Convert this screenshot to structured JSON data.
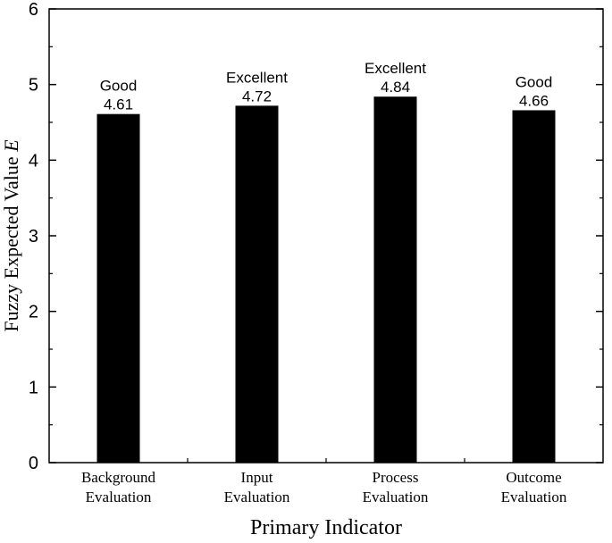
{
  "chart_data": {
    "type": "bar",
    "title": "",
    "categories": [
      [
        "Background",
        "Evaluation"
      ],
      [
        "Input",
        "Evaluation"
      ],
      [
        "Process",
        "Evaluation"
      ],
      [
        "Outcome",
        "Evaluation"
      ]
    ],
    "values": [
      4.61,
      4.72,
      4.84,
      4.66
    ],
    "value_labels": [
      "4.61",
      "4.72",
      "4.84",
      "4.66"
    ],
    "grade_labels": [
      "Good",
      "Excellent",
      "Excellent",
      "Good"
    ],
    "xlabel": "Primary Indicator",
    "ylabel": "Fuzzy Expected Value",
    "ylabel_symbol": "E",
    "ylim": [
      0,
      6
    ],
    "yticks": [
      "0",
      "1",
      "2",
      "3",
      "4",
      "5",
      "6"
    ],
    "grid": false,
    "legend": "none",
    "bar_color": "#000000"
  }
}
